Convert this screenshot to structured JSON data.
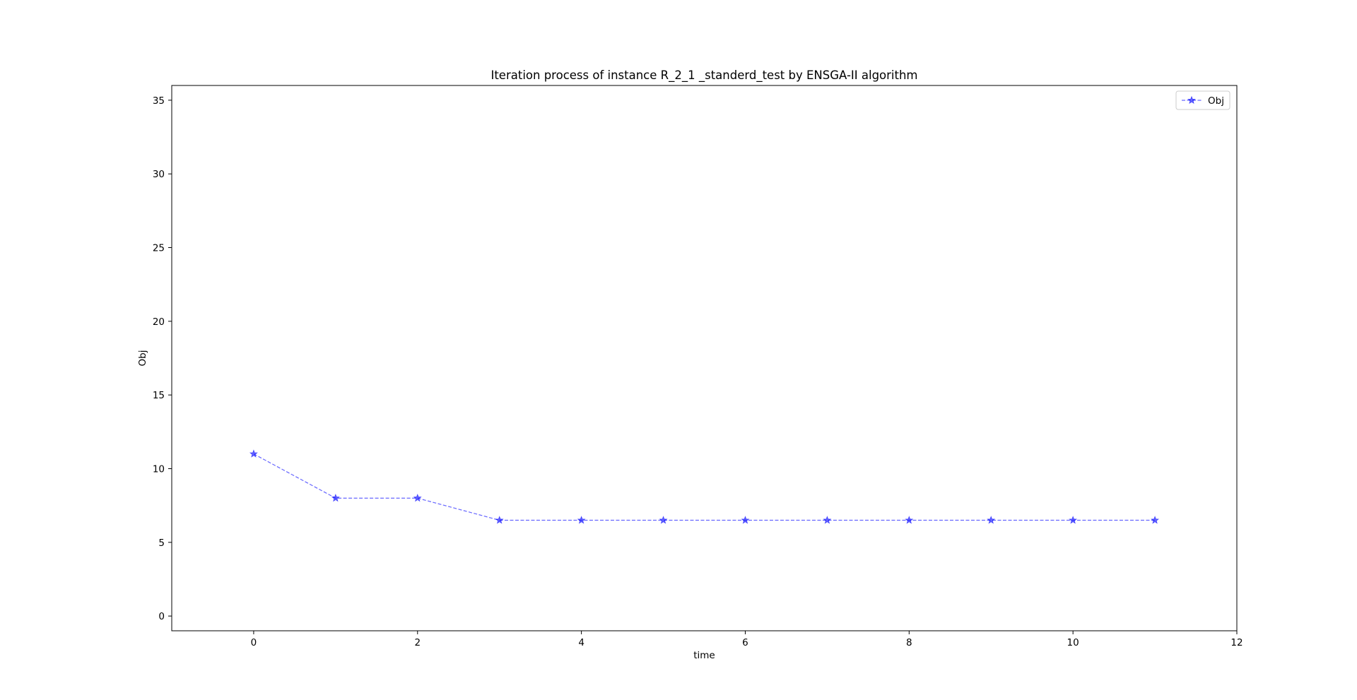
{
  "chart_data": {
    "type": "line",
    "title": "Iteration process of instance R_2_1 _standerd_test by ENSGA-II algorithm",
    "xlabel": "time",
    "ylabel": "Obj",
    "xlim": [
      -1,
      12
    ],
    "ylim": [
      -1,
      36
    ],
    "xticks": [
      0,
      2,
      4,
      6,
      8,
      10,
      12
    ],
    "yticks": [
      0,
      5,
      10,
      15,
      20,
      25,
      30,
      35
    ],
    "grid": false,
    "legend_position": "top-right",
    "series": [
      {
        "name": "Obj",
        "color": "#0000ff",
        "line_style": "dashed",
        "marker": "star",
        "x": [
          0,
          1,
          2,
          3,
          4,
          5,
          6,
          7,
          8,
          9,
          10,
          11
        ],
        "y": [
          11,
          8,
          8,
          6.5,
          6.5,
          6.5,
          6.5,
          6.5,
          6.5,
          6.5,
          6.5,
          6.5
        ]
      }
    ]
  }
}
